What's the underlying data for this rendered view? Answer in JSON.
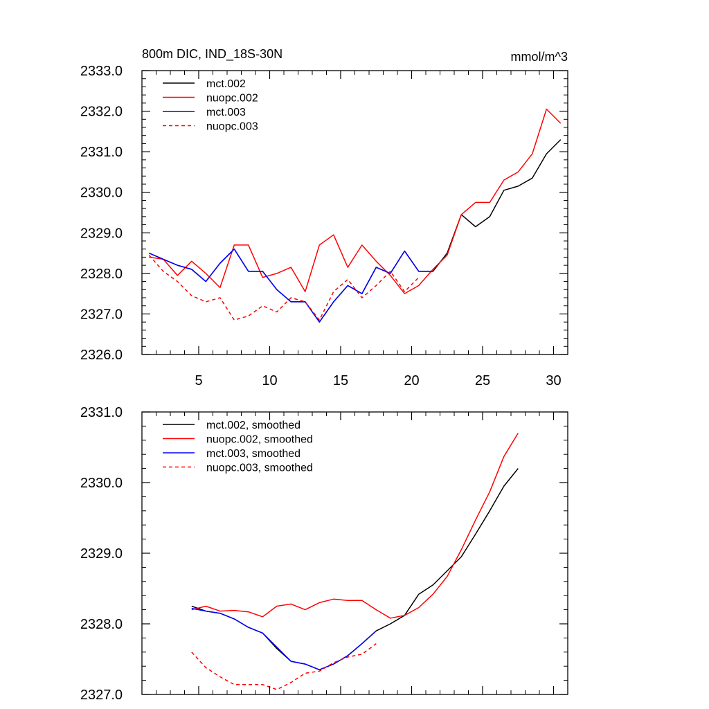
{
  "chart_data": [
    {
      "type": "line",
      "title": "800m DIC, IND_18S-30N",
      "units": "mmol/m^3",
      "xlim": [
        1,
        31
      ],
      "ylim": [
        2326.0,
        2333.0
      ],
      "x_ticks": [
        5,
        10,
        15,
        20,
        25,
        30
      ],
      "y_ticks": [
        2326.0,
        2327.0,
        2328.0,
        2329.0,
        2330.0,
        2331.0,
        2332.0,
        2333.0
      ],
      "y_tick_labels": [
        "2326.0",
        "2327.0",
        "2328.0",
        "2329.0",
        "2330.0",
        "2331.0",
        "2332.0",
        "2333.0"
      ],
      "x_tick_labels": [
        "5",
        "10",
        "15",
        "20",
        "25",
        "30"
      ],
      "legend": "top-left",
      "series": [
        {
          "name": "mct.002",
          "color": "#000000",
          "dash": "solid",
          "x": [
            1.5,
            2.5,
            3.5,
            4.5,
            5.5,
            6.5,
            7.5,
            8.5,
            9.5,
            10.5,
            11.5,
            12.5,
            13.5,
            14.5,
            15.5,
            16.5,
            17.5,
            18.5,
            19.5,
            20.5,
            21.5,
            22.5,
            23.5,
            24.5,
            25.5,
            26.5,
            27.5,
            28.5,
            29.5,
            30.5
          ],
          "values": [
            2328.5,
            2328.35,
            2328.2,
            2328.1,
            2327.8,
            2328.25,
            2328.6,
            2328.05,
            2328.05,
            2327.6,
            2327.3,
            2327.3,
            2326.8,
            2327.3,
            2327.7,
            2327.5,
            2328.15,
            2328.0,
            2328.55,
            2328.05,
            2328.05,
            2328.5,
            2329.45,
            2329.15,
            2329.4,
            2330.05,
            2330.15,
            2330.35,
            2330.95,
            2331.3
          ]
        },
        {
          "name": "nuopc.002",
          "color": "#ff0000",
          "dash": "solid",
          "x": [
            1.5,
            2.5,
            3.5,
            4.5,
            5.5,
            6.5,
            7.5,
            8.5,
            9.5,
            10.5,
            11.5,
            12.5,
            13.5,
            14.5,
            15.5,
            16.5,
            17.5,
            18.5,
            19.5,
            20.5,
            21.5,
            22.5,
            23.5,
            24.5,
            25.5,
            26.5,
            27.5,
            28.5,
            29.5,
            30.5
          ],
          "values": [
            2328.4,
            2328.35,
            2327.95,
            2328.3,
            2328.0,
            2327.65,
            2328.7,
            2328.7,
            2327.9,
            2328.0,
            2328.15,
            2327.55,
            2328.7,
            2328.95,
            2328.15,
            2328.7,
            2328.3,
            2327.95,
            2327.5,
            2327.7,
            2328.1,
            2328.45,
            2329.45,
            2329.75,
            2329.75,
            2330.3,
            2330.5,
            2330.95,
            2332.05,
            2331.7
          ]
        },
        {
          "name": "mct.003",
          "color": "#0000ff",
          "dash": "solid",
          "x": [
            1.5,
            2.5,
            3.5,
            4.5,
            5.5,
            6.5,
            7.5,
            8.5,
            9.5,
            10.5,
            11.5,
            12.5,
            13.5,
            14.5,
            15.5,
            16.5,
            17.5,
            18.5,
            19.5,
            20.5,
            21.5
          ],
          "values": [
            2328.5,
            2328.35,
            2328.2,
            2328.1,
            2327.8,
            2328.25,
            2328.6,
            2328.05,
            2328.05,
            2327.6,
            2327.3,
            2327.3,
            2326.8,
            2327.3,
            2327.7,
            2327.5,
            2328.15,
            2328.0,
            2328.55,
            2328.05,
            2328.05
          ]
        },
        {
          "name": "nuopc.003",
          "color": "#ff0000",
          "dash": "dashed",
          "x": [
            1.5,
            2.5,
            3.5,
            4.5,
            5.5,
            6.5,
            7.5,
            8.5,
            9.5,
            10.5,
            11.5,
            12.5,
            13.5,
            14.5,
            15.5,
            16.5,
            17.5,
            18.5,
            19.5,
            20.5
          ],
          "values": [
            2328.45,
            2328.05,
            2327.8,
            2327.45,
            2327.3,
            2327.4,
            2326.85,
            2326.95,
            2327.2,
            2327.05,
            2327.4,
            2327.3,
            2326.85,
            2327.55,
            2327.85,
            2327.4,
            2327.7,
            2328.05,
            2327.55,
            2327.9
          ]
        }
      ]
    },
    {
      "type": "line",
      "title": "",
      "xlim": [
        1,
        31
      ],
      "ylim": [
        2327.0,
        2331.0
      ],
      "x_ticks": [
        5,
        10,
        15,
        20,
        25,
        30
      ],
      "y_ticks": [
        2327.0,
        2328.0,
        2329.0,
        2330.0,
        2331.0
      ],
      "y_tick_labels": [
        "2327.0",
        "2328.0",
        "2329.0",
        "2330.0",
        "2331.0"
      ],
      "x_tick_labels": [],
      "legend": "top-left",
      "series": [
        {
          "name": "mct.002, smoothed",
          "color": "#000000",
          "dash": "solid",
          "x": [
            4.5,
            5.5,
            6.5,
            7.5,
            8.5,
            9.5,
            10.5,
            11.5,
            12.5,
            13.5,
            14.5,
            15.5,
            16.5,
            17.5,
            18.5,
            19.5,
            20.5,
            21.5,
            22.5,
            23.5,
            24.5,
            25.5,
            26.5,
            27.5
          ],
          "values": [
            2328.25,
            2328.18,
            2328.15,
            2328.07,
            2327.95,
            2327.87,
            2327.65,
            2327.47,
            2327.43,
            2327.35,
            2327.43,
            2327.55,
            2327.72,
            2327.9,
            2328.0,
            2328.12,
            2328.42,
            2328.55,
            2328.75,
            2328.95,
            2329.27,
            2329.6,
            2329.95,
            2330.2
          ]
        },
        {
          "name": "nuopc.002, smoothed",
          "color": "#ff0000",
          "dash": "solid",
          "x": [
            4.5,
            5.5,
            6.5,
            7.5,
            8.5,
            9.5,
            10.5,
            11.5,
            12.5,
            13.5,
            14.5,
            15.5,
            16.5,
            17.5,
            18.5,
            19.5,
            20.5,
            21.5,
            22.5,
            23.5,
            24.5,
            25.5,
            26.5,
            27.5
          ],
          "values": [
            2328.2,
            2328.25,
            2328.18,
            2328.19,
            2328.17,
            2328.1,
            2328.25,
            2328.28,
            2328.2,
            2328.3,
            2328.35,
            2328.33,
            2328.33,
            2328.2,
            2328.08,
            2328.12,
            2328.23,
            2328.42,
            2328.67,
            2329.05,
            2329.47,
            2329.87,
            2330.37,
            2330.7
          ]
        },
        {
          "name": "mct.003, smoothed",
          "color": "#0000ff",
          "dash": "solid",
          "x": [
            4.5,
            5.5,
            6.5,
            7.5,
            8.5,
            9.5,
            10.5,
            11.5,
            12.5,
            13.5,
            14.5,
            15.5,
            16.5,
            17.5
          ],
          "values": [
            2328.22,
            2328.18,
            2328.15,
            2328.07,
            2327.95,
            2327.87,
            2327.67,
            2327.47,
            2327.43,
            2327.35,
            2327.43,
            2327.55,
            2327.72,
            2327.9
          ]
        },
        {
          "name": "nuopc.003, smoothed",
          "color": "#ff0000",
          "dash": "dashed",
          "x": [
            4.5,
            5.5,
            6.5,
            7.5,
            8.5,
            9.5,
            10.5,
            11.5,
            12.5,
            13.5,
            14.5,
            15.5,
            16.5,
            17.5
          ],
          "values": [
            2327.6,
            2327.38,
            2327.25,
            2327.14,
            2327.14,
            2327.14,
            2327.07,
            2327.17,
            2327.3,
            2327.33,
            2327.45,
            2327.53,
            2327.57,
            2327.72
          ]
        }
      ]
    }
  ]
}
